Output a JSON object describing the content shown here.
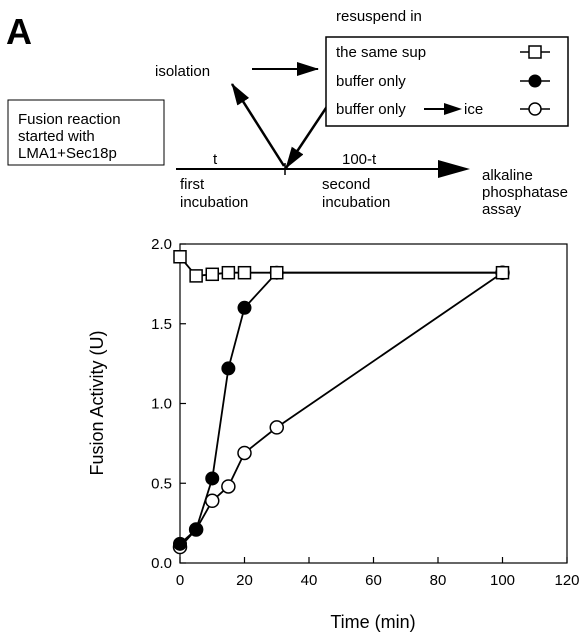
{
  "panel_label": "A",
  "scheme": {
    "start_box": [
      "Fusion reaction",
      "started with",
      "LMA1+Sec18p"
    ],
    "t_label": "t",
    "remaining_label": "100-t",
    "first_incubation": [
      "first",
      "incubation"
    ],
    "second_incubation": [
      "second",
      "incubation"
    ],
    "assay": [
      "alkaline",
      "phosphatase",
      "assay"
    ],
    "isolation": "isolation",
    "resuspend": "resuspend in",
    "legend": [
      {
        "label": "the same sup",
        "marker": "open-square"
      },
      {
        "label": "buffer only",
        "marker": "filled-circle"
      },
      {
        "label": "buffer only",
        "suffix": "ice",
        "marker": "open-circle"
      }
    ]
  },
  "chart_data": {
    "type": "line",
    "xlabel": "Time (min)",
    "ylabel": "Fusion Activity (U)",
    "xlim": [
      0,
      120
    ],
    "ylim": [
      0.0,
      2.0
    ],
    "xticks": [
      "0",
      "20",
      "40",
      "60",
      "80",
      "100",
      "120"
    ],
    "yticks": [
      "0.0",
      "0.5",
      "1.0",
      "1.5",
      "2.0"
    ],
    "grid": false,
    "series": [
      {
        "name": "the same sup",
        "marker": "open-square",
        "x": [
          0,
          5,
          10,
          15,
          20,
          30,
          100
        ],
        "y": [
          1.92,
          1.8,
          1.81,
          1.82,
          1.82,
          1.82,
          1.82
        ]
      },
      {
        "name": "buffer only",
        "marker": "filled-circle",
        "x": [
          0,
          5,
          10,
          15,
          20,
          30,
          100
        ],
        "y": [
          0.12,
          0.21,
          0.53,
          1.22,
          1.6,
          1.82,
          1.82
        ]
      },
      {
        "name": "buffer only → ice",
        "marker": "open-circle",
        "x": [
          0,
          5,
          10,
          15,
          20,
          30,
          100
        ],
        "y": [
          0.1,
          0.21,
          0.39,
          0.48,
          0.69,
          0.85,
          1.82
        ]
      }
    ]
  },
  "colors": {
    "ink": "#000000",
    "background": "#ffffff"
  }
}
